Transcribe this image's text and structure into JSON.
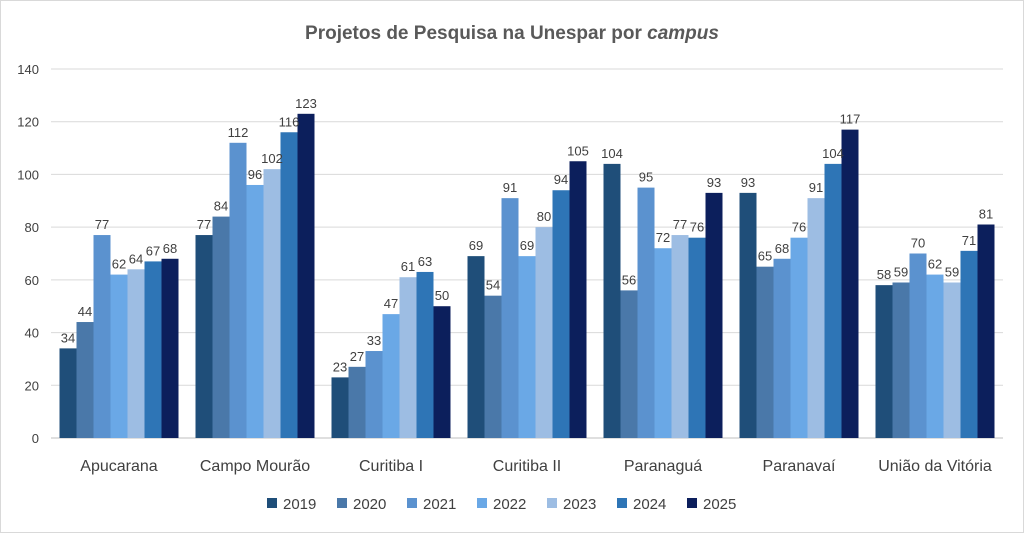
{
  "chart_data": {
    "type": "bar",
    "title": "Projetos de Pesquisa na Unespar por",
    "title_emphasis": "campus",
    "categories": [
      "Apucarana",
      "Campo Mourão",
      "Curitiba I",
      "Curitiba II",
      "Paranaguá",
      "Paranavaí",
      "União da Vitória"
    ],
    "series": [
      {
        "name": "2019",
        "color": "#1f4e79",
        "values": [
          34,
          77,
          23,
          69,
          104,
          93,
          58
        ]
      },
      {
        "name": "2020",
        "color": "#4a78a9",
        "values": [
          44,
          84,
          27,
          54,
          56,
          65,
          59
        ]
      },
      {
        "name": "2021",
        "color": "#5b92cf",
        "values": [
          77,
          112,
          33,
          91,
          95,
          68,
          70
        ]
      },
      {
        "name": "2022",
        "color": "#6aa8e6",
        "values": [
          62,
          96,
          47,
          69,
          72,
          76,
          62
        ]
      },
      {
        "name": "2023",
        "color": "#9dbde3",
        "values": [
          64,
          102,
          61,
          80,
          77,
          91,
          59
        ]
      },
      {
        "name": "2024",
        "color": "#2e75b6",
        "values": [
          67,
          116,
          63,
          94,
          76,
          104,
          71
        ]
      },
      {
        "name": "2025",
        "color": "#0c1f5c",
        "values": [
          68,
          123,
          50,
          105,
          93,
          117,
          81
        ]
      }
    ],
    "ylim": [
      0,
      140
    ],
    "yticks": [
      "0",
      "20",
      "40",
      "60",
      "80",
      "100",
      "120",
      "140"
    ],
    "grid": true,
    "legend_position": "bottom",
    "data_labels": true
  }
}
